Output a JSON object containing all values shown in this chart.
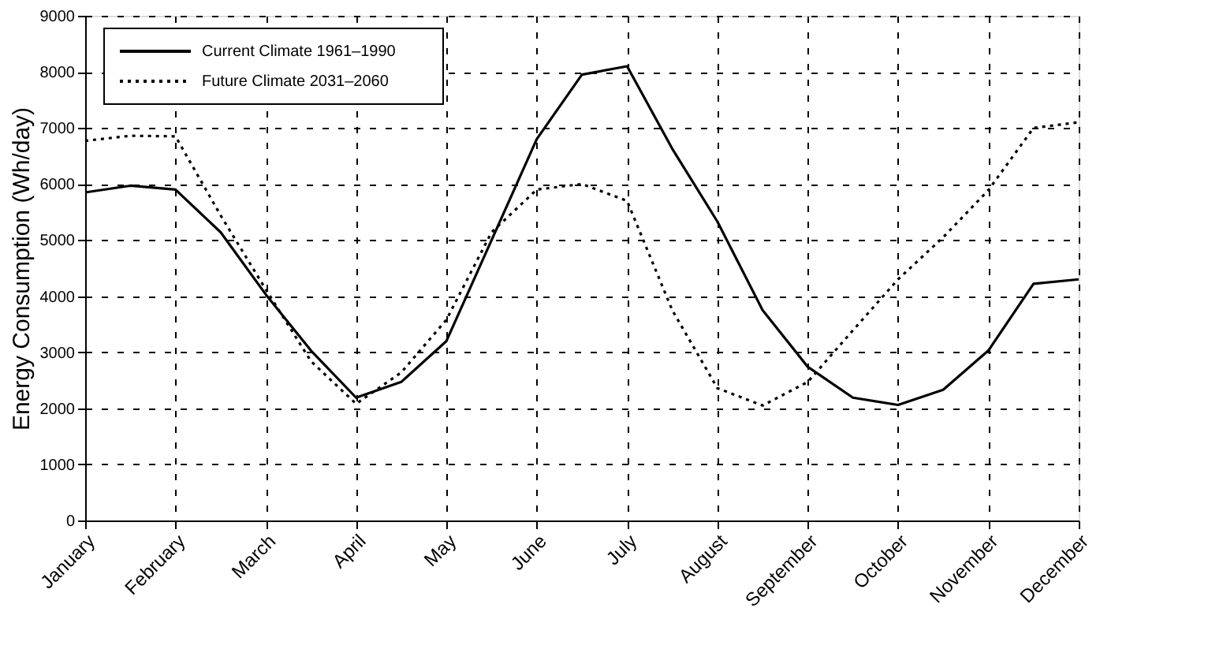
{
  "chart_data": {
    "type": "line",
    "ylabel": "Energy Consumption (Wh/day)",
    "categories": [
      "January",
      null,
      "February",
      null,
      "March",
      null,
      "April",
      null,
      "May",
      null,
      "June",
      null,
      "July",
      null,
      "August",
      null,
      "September",
      null,
      "October",
      null,
      "November",
      null,
      "December"
    ],
    "ylim": [
      0,
      9000
    ],
    "yticks": [
      0,
      1000,
      2000,
      3000,
      4000,
      5000,
      6000,
      7000,
      8000,
      9000
    ],
    "grid": true,
    "legend": "top left",
    "marker": "none",
    "series": [
      {
        "name": "Current Climate 1961–1990",
        "color": "#000000",
        "line_style": "solid",
        "values": [
          5850,
          5970,
          5900,
          5140,
          4030,
          3030,
          2190,
          2470,
          3200,
          5000,
          6800,
          7950,
          8100,
          6630,
          5330,
          3750,
          2740,
          2190,
          2060,
          2330,
          3030,
          4220,
          4300
        ]
      },
      {
        "name": "Future Climate 2031–2060",
        "color": "#000000",
        "line_style": "dotted",
        "values": [
          6770,
          6860,
          6850,
          5440,
          4120,
          2840,
          2080,
          2640,
          3580,
          5140,
          5900,
          6000,
          5700,
          3750,
          2360,
          2050,
          2470,
          3390,
          4300,
          5050,
          5890,
          7000,
          7100
        ]
      }
    ]
  }
}
